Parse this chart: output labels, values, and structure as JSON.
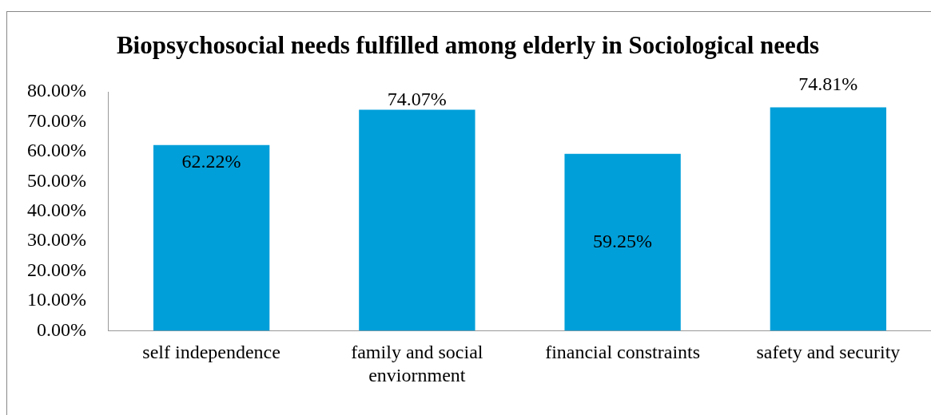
{
  "chart_data": {
    "type": "bar",
    "title": "Biopsychosocial needs fulfilled among elderly in Sociological needs",
    "categories": [
      "self independence",
      "family and social enviornment",
      "financial constraints",
      "safety and security"
    ],
    "values": [
      62.22,
      74.07,
      59.25,
      74.81
    ],
    "value_labels": [
      "62.22%",
      "74.07%",
      "59.25%",
      "74.81%"
    ],
    "color": "#009fd9",
    "ylim": [
      0,
      80
    ],
    "yticks": [
      {
        "value": 0,
        "label": "0.00%"
      },
      {
        "value": 10,
        "label": "10.00%"
      },
      {
        "value": 20,
        "label": "20.00%"
      },
      {
        "value": 30,
        "label": "30.00%"
      },
      {
        "value": 40,
        "label": "40.00%"
      },
      {
        "value": 50,
        "label": "50.00%"
      },
      {
        "value": 60,
        "label": "60.00%"
      },
      {
        "value": 70,
        "label": "70.00%"
      },
      {
        "value": 80,
        "label": "80.00%"
      }
    ],
    "grid": false,
    "legend": false
  }
}
